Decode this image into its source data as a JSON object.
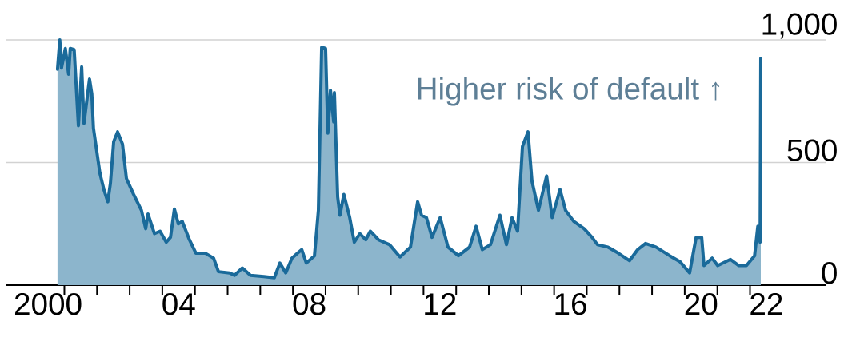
{
  "chart_data": {
    "type": "area",
    "x": [
      2000.29,
      2000.36,
      2000.41,
      2000.53,
      2000.63,
      2000.68,
      2000.8,
      2000.93,
      2001.03,
      2001.1,
      2001.27,
      2001.34,
      2001.39,
      2001.59,
      2001.71,
      2001.83,
      2001.91,
      2002.01,
      2002.13,
      2002.28,
      2002.4,
      2002.62,
      2002.86,
      2002.99,
      2003.06,
      2003.26,
      2003.43,
      2003.62,
      2003.75,
      2003.87,
      2003.99,
      2004.11,
      2004.33,
      2004.53,
      2004.82,
      2005.07,
      2005.22,
      2005.56,
      2005.71,
      2005.95,
      2006.2,
      2006.61,
      2006.93,
      2007.1,
      2007.28,
      2007.47,
      2007.64,
      2007.77,
      2007.91,
      2008.16,
      2008.28,
      2008.38,
      2008.5,
      2008.57,
      2008.65,
      2008.75,
      2008.77,
      2008.87,
      2008.94,
      2009.06,
      2009.24,
      2009.38,
      2009.55,
      2009.73,
      2009.87,
      2010.12,
      2010.46,
      2010.78,
      2011.1,
      2011.32,
      2011.44,
      2011.59,
      2011.76,
      2012.01,
      2012.25,
      2012.57,
      2012.91,
      2013.11,
      2013.3,
      2013.55,
      2013.84,
      2014.04,
      2014.21,
      2014.38,
      2014.53,
      2014.7,
      2014.82,
      2015.02,
      2015.27,
      2015.44,
      2015.68,
      2015.85,
      2016.1,
      2016.42,
      2016.66,
      2016.83,
      2017.15,
      2017.47,
      2017.81,
      2018.06,
      2018.3,
      2018.62,
      2019.04,
      2019.36,
      2019.65,
      2019.85,
      2020.02,
      2020.09,
      2020.34,
      2020.51,
      2020.9,
      2021.15,
      2021.39,
      2021.64,
      2021.74,
      2021.81,
      2021.83
    ],
    "series": [
      {
        "color": "#1a6a9a",
        "values": [
          880,
          1000,
          885,
          965,
          860,
          965,
          960,
          650,
          890,
          660,
          840,
          780,
          640,
          455,
          390,
          340,
          415,
          585,
          625,
          575,
          435,
          370,
          305,
          230,
          290,
          210,
          220,
          175,
          195,
          310,
          250,
          260,
          185,
          130,
          130,
          110,
          55,
          50,
          40,
          70,
          40,
          35,
          30,
          90,
          50,
          110,
          130,
          145,
          90,
          120,
          305,
          970,
          965,
          620,
          795,
          665,
          785,
          360,
          285,
          370,
          275,
          175,
          210,
          185,
          220,
          185,
          165,
          115,
          155,
          340,
          285,
          275,
          195,
          275,
          155,
          120,
          155,
          240,
          145,
          165,
          285,
          165,
          275,
          220,
          565,
          625,
          425,
          305,
          445,
          275,
          390,
          305,
          260,
          230,
          195,
          165,
          155,
          130,
          100,
          145,
          170,
          155,
          120,
          95,
          50,
          195,
          195,
          80,
          110,
          80,
          105,
          80,
          80,
          120,
          240,
          175,
          925
        ]
      }
    ],
    "xlim": [
      1998.7,
      2023.84
    ],
    "xticks": [
      {
        "value": 2000,
        "label": "2000"
      },
      {
        "value": 2004,
        "label": "04"
      },
      {
        "value": 2008,
        "label": "08"
      },
      {
        "value": 2012,
        "label": "12"
      },
      {
        "value": 2016,
        "label": "16"
      },
      {
        "value": 2020,
        "label": "20"
      },
      {
        "value": 2022,
        "label": "22"
      },
      {
        "value": 2000.5,
        "label": null
      },
      {
        "value": 2001.5,
        "label": null
      },
      {
        "value": 2002.5,
        "label": null
      },
      {
        "value": 2003.5,
        "label": null
      },
      {
        "value": 2004.5,
        "label": null
      },
      {
        "value": 2005.5,
        "label": null
      },
      {
        "value": 2006.5,
        "label": null
      },
      {
        "value": 2007.5,
        "label": null
      },
      {
        "value": 2008.5,
        "label": null
      },
      {
        "value": 2009.5,
        "label": null
      },
      {
        "value": 2010.5,
        "label": null
      },
      {
        "value": 2011.5,
        "label": null
      },
      {
        "value": 2012.5,
        "label": null
      },
      {
        "value": 2013.5,
        "label": null
      },
      {
        "value": 2014.5,
        "label": null
      },
      {
        "value": 2015.5,
        "label": null
      },
      {
        "value": 2016.5,
        "label": null
      },
      {
        "value": 2017.5,
        "label": null
      },
      {
        "value": 2018.5,
        "label": null
      },
      {
        "value": 2019.5,
        "label": null
      },
      {
        "value": 2020.5,
        "label": null
      },
      {
        "value": 2021.5,
        "label": null
      }
    ],
    "ylim": [
      0,
      1000
    ],
    "yticks": [
      0,
      500,
      {
        "value": 1000,
        "label": "1,000"
      }
    ],
    "grid": "y",
    "annotations": [
      "Higher risk of default ↑"
    ]
  }
}
